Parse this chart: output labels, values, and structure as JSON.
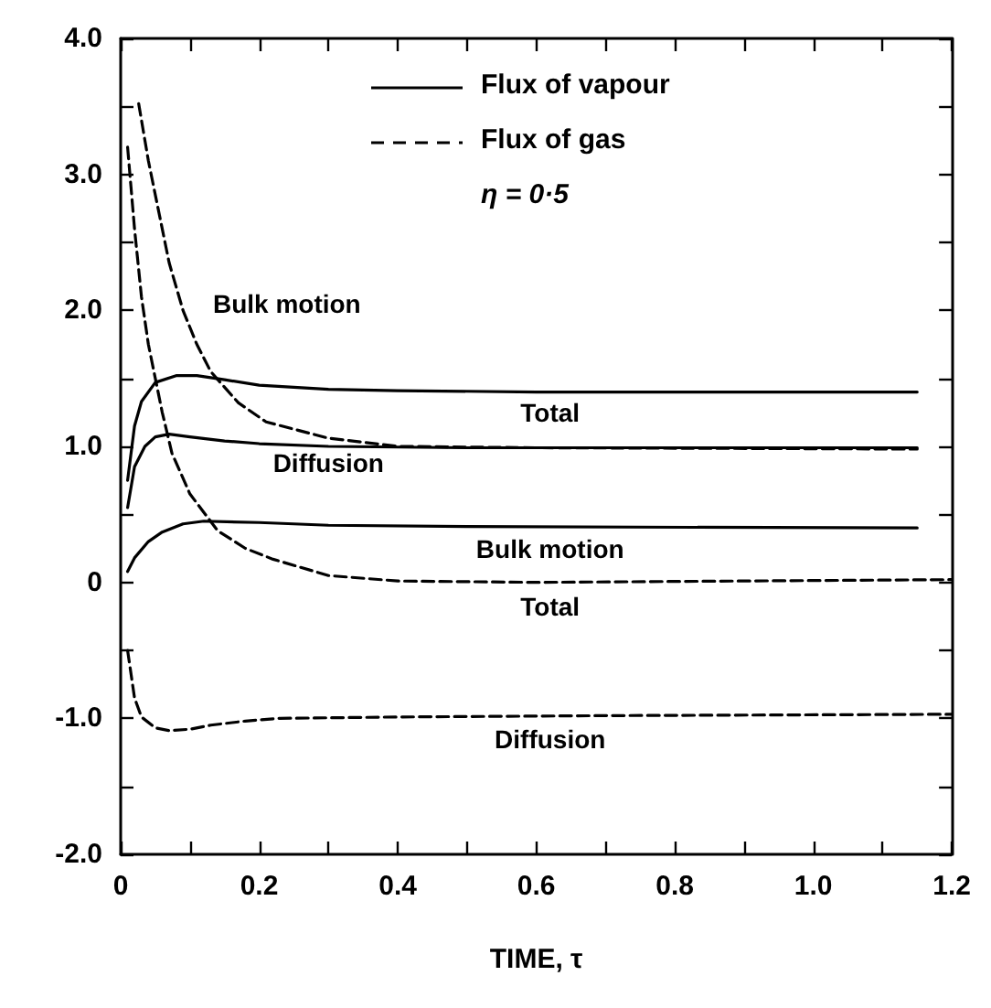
{
  "chart_data": {
    "type": "line",
    "xlabel": "TIME, τ",
    "annotations": [
      "Flux of vapour",
      "Flux of gas",
      "η = 0·5"
    ],
    "xlim": [
      0,
      1.2
    ],
    "ylim": [
      -2.0,
      4.0
    ],
    "xticks": [
      0,
      {
        "value": 0.1,
        "label": null
      },
      0.2,
      {
        "value": 0.3,
        "label": null
      },
      0.4,
      {
        "value": 0.5,
        "label": null
      },
      0.6,
      {
        "value": 0.7,
        "label": null
      },
      0.8,
      {
        "value": 0.9,
        "label": null
      },
      {
        "value": 1.0,
        "label": "1.0"
      },
      {
        "value": 1.1,
        "label": null
      },
      1.2
    ],
    "yticks": [
      {
        "value": -2,
        "label": "-2.0"
      },
      {
        "value": -1.5,
        "label": null
      },
      {
        "value": -1,
        "label": "-1.0"
      },
      {
        "value": -0.5,
        "label": null
      },
      0,
      {
        "value": 0.5,
        "label": null
      },
      {
        "value": 1,
        "label": "1.0"
      },
      {
        "value": 1.5,
        "label": null
      },
      {
        "value": 2,
        "label": "2.0"
      },
      {
        "value": 2.5,
        "label": null
      },
      {
        "value": 3,
        "label": "3.0"
      },
      {
        "value": 3.5,
        "label": null
      },
      {
        "value": 4,
        "label": "4.0"
      }
    ],
    "grid": false,
    "marker": "none",
    "series": [
      {
        "name": "Total",
        "color": "#000000",
        "line_style": "solid",
        "x": [
          0.01,
          0.02,
          0.03,
          0.05,
          0.08,
          0.11,
          0.15,
          0.2,
          0.3,
          0.4,
          0.6,
          1.15
        ],
        "values": [
          0.75,
          1.15,
          1.33,
          1.47,
          1.52,
          1.52,
          1.49,
          1.45,
          1.42,
          1.41,
          1.4,
          1.4
        ]
      },
      {
        "name": "Diffusion",
        "color": "#000000",
        "line_style": "solid",
        "x": [
          0.01,
          0.02,
          0.035,
          0.05,
          0.07,
          0.1,
          0.15,
          0.2,
          0.3,
          0.5,
          1.15
        ],
        "values": [
          0.55,
          0.85,
          1.0,
          1.07,
          1.09,
          1.07,
          1.04,
          1.02,
          1.0,
          0.99,
          0.99
        ]
      },
      {
        "name": "Bulk motion",
        "color": "#000000",
        "line_style": "solid",
        "x": [
          0.01,
          0.02,
          0.04,
          0.06,
          0.09,
          0.12,
          0.2,
          0.3,
          0.5,
          1.15
        ],
        "values": [
          0.08,
          0.18,
          0.3,
          0.37,
          0.43,
          0.45,
          0.44,
          0.42,
          0.41,
          0.4
        ]
      },
      {
        "name": "Bulk motion",
        "color": "#000000",
        "line_style": "dashed",
        "x": [
          0.026,
          0.04,
          0.056,
          0.07,
          0.09,
          0.11,
          0.13,
          0.17,
          0.21,
          0.3,
          0.4,
          0.6,
          1.15
        ],
        "values": [
          3.52,
          3.1,
          2.7,
          2.35,
          2.0,
          1.75,
          1.55,
          1.32,
          1.18,
          1.06,
          1.0,
          0.99,
          0.98
        ]
      },
      {
        "name": "Total",
        "color": "#000000",
        "line_style": "dashed",
        "x": [
          0.01,
          0.02,
          0.03,
          0.04,
          0.05,
          0.06,
          0.074,
          0.1,
          0.14,
          0.18,
          0.22,
          0.3,
          0.4,
          0.6,
          1.2
        ],
        "values": [
          3.2,
          2.6,
          2.1,
          1.75,
          1.5,
          1.25,
          0.95,
          0.65,
          0.38,
          0.25,
          0.17,
          0.05,
          0.01,
          0.0,
          0.02
        ]
      },
      {
        "name": "Diffusion",
        "color": "#000000",
        "line_style": "dashed",
        "x": [
          0.01,
          0.02,
          0.03,
          0.05,
          0.07,
          0.1,
          0.13,
          0.18,
          0.23,
          0.4,
          0.7,
          1.2
        ],
        "values": [
          -0.5,
          -0.85,
          -0.99,
          -1.07,
          -1.09,
          -1.08,
          -1.05,
          -1.02,
          -1.0,
          -0.99,
          -0.98,
          -0.97
        ]
      }
    ]
  }
}
